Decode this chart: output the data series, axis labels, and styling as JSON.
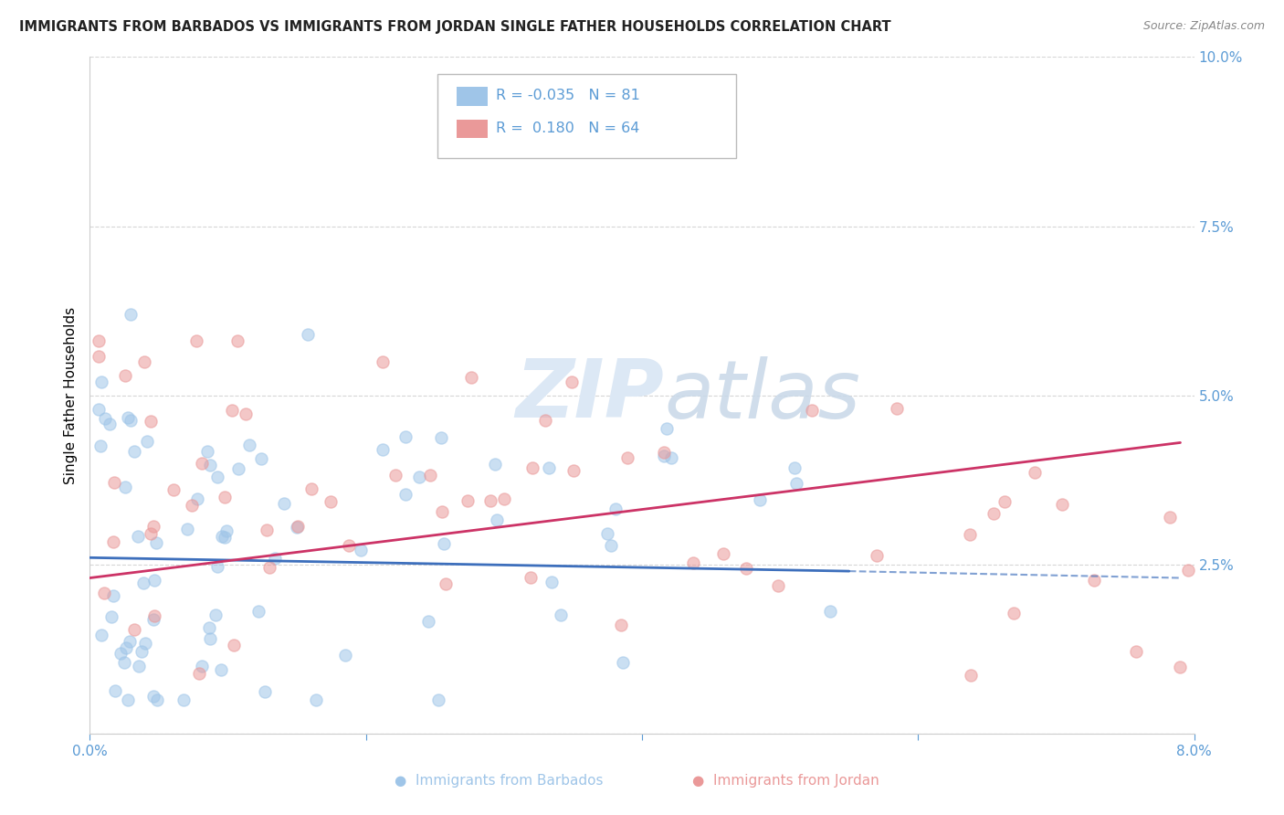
{
  "title": "IMMIGRANTS FROM BARBADOS VS IMMIGRANTS FROM JORDAN SINGLE FATHER HOUSEHOLDS CORRELATION CHART",
  "source": "Source: ZipAtlas.com",
  "ylabel": "Single Father Households",
  "xlim": [
    0.0,
    0.08
  ],
  "ylim": [
    0.0,
    0.1
  ],
  "legend_r_barbados": "-0.035",
  "legend_r_jordan": "0.180",
  "legend_n_barbados": "81",
  "legend_n_jordan": "64",
  "barbados_color": "#9fc5e8",
  "jordan_color": "#ea9999",
  "barbados_line_color": "#3d6fbc",
  "jordan_line_color": "#cc3366",
  "watermark_color": "#dce8f5",
  "grid_color": "#cccccc",
  "tick_color": "#5b9bd5",
  "right_ytick_color": "#5b9bd5"
}
